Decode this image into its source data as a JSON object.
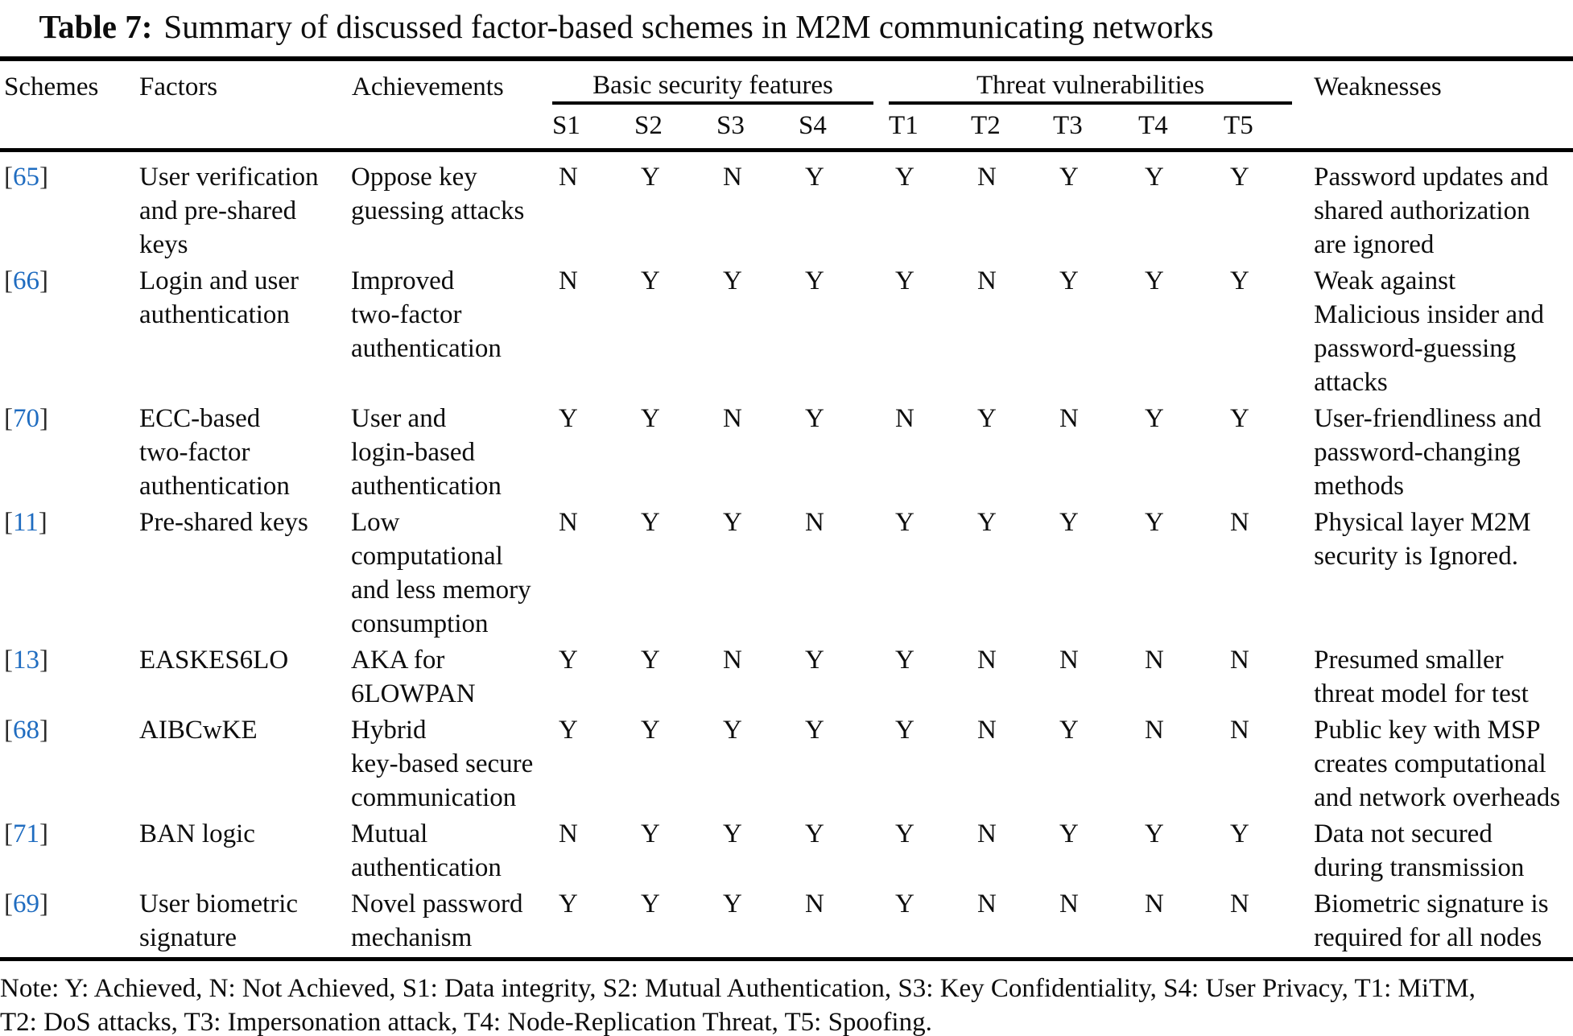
{
  "title": {
    "label": "Table 7:",
    "text": "Summary of discussed factor-based schemes in M2M communicating networks"
  },
  "table": {
    "columns": {
      "schemes": "Schemes",
      "factors": "Factors",
      "achievements": "Achievements",
      "basic_security_group": "Basic security features",
      "threat_group": "Threat vulnerabilities",
      "security_cols": [
        "S1",
        "S2",
        "S3",
        "S4"
      ],
      "threat_cols": [
        "T1",
        "T2",
        "T3",
        "T4",
        "T5"
      ],
      "weaknesses": "Weaknesses"
    },
    "ref_brackets": {
      "open": "[",
      "close": "]"
    },
    "rows": [
      {
        "ref": "65",
        "factors": "User verification\nand pre-shared\nkeys",
        "achievements": "Oppose key\nguessing attacks",
        "security": [
          "N",
          "Y",
          "N",
          "Y"
        ],
        "threats": [
          "Y",
          "N",
          "Y",
          "Y",
          "Y"
        ],
        "weakness": "Password updates and\nshared authorization\nare ignored"
      },
      {
        "ref": "66",
        "factors": "Login and user\nauthentication",
        "achievements": "Improved\ntwo-factor\nauthentication",
        "security": [
          "N",
          "Y",
          "Y",
          "Y"
        ],
        "threats": [
          "Y",
          "N",
          "Y",
          "Y",
          "Y"
        ],
        "weakness": "Weak against\nMalicious insider and\npassword-guessing\nattacks"
      },
      {
        "ref": "70",
        "factors": "ECC-based\ntwo-factor\nauthentication",
        "achievements": "User and\nlogin-based\nauthentication",
        "security": [
          "Y",
          "Y",
          "N",
          "Y"
        ],
        "threats": [
          "N",
          "Y",
          "N",
          "Y",
          "Y"
        ],
        "weakness": "User-friendliness and\npassword-changing\nmethods"
      },
      {
        "ref": "11",
        "factors": "Pre-shared keys",
        "achievements": "Low\ncomputational\nand less memory\nconsumption",
        "security": [
          "N",
          "Y",
          "Y",
          "N"
        ],
        "threats": [
          "Y",
          "Y",
          "Y",
          "Y",
          "N"
        ],
        "weakness": "Physical layer M2M\nsecurity is Ignored."
      },
      {
        "ref": "13",
        "factors": "EASKES6LO",
        "achievements": "AKA for\n6LOWPAN",
        "security": [
          "Y",
          "Y",
          "N",
          "Y"
        ],
        "threats": [
          "Y",
          "N",
          "N",
          "N",
          "N"
        ],
        "weakness": "Presumed smaller\nthreat model for test"
      },
      {
        "ref": "68",
        "factors": "AIBCwKE",
        "achievements": "Hybrid\nkey-based secure\ncommunication",
        "security": [
          "Y",
          "Y",
          "Y",
          "Y"
        ],
        "threats": [
          "Y",
          "N",
          "Y",
          "N",
          "N"
        ],
        "weakness": "Public key with MSP\ncreates computational\nand network overheads"
      },
      {
        "ref": "71",
        "factors": "BAN logic",
        "achievements": "Mutual\nauthentication",
        "security": [
          "N",
          "Y",
          "Y",
          "Y"
        ],
        "threats": [
          "Y",
          "N",
          "Y",
          "Y",
          "Y"
        ],
        "weakness": "Data not secured\nduring transmission"
      },
      {
        "ref": "69",
        "factors": "User biometric\nsignature",
        "achievements": "Novel password\nmechanism",
        "security": [
          "Y",
          "Y",
          "Y",
          "N"
        ],
        "threats": [
          "Y",
          "N",
          "N",
          "N",
          "N"
        ],
        "weakness": "Biometric signature is\nrequired for all nodes"
      }
    ],
    "note": "Note: Y: Achieved, N: Not Achieved, S1: Data integrity, S2: Mutual Authentication, S3: Key Confidentiality, S4: User Privacy, T1: MiTM,\nT2: DoS attacks, T3: Impersonation attack, T4: Node-Replication Threat, T5: Spoofing."
  },
  "colors": {
    "background": "#ffffff",
    "text": "#0d0d0d",
    "rule": "#000000",
    "ref_number": "#1f6cc0",
    "ref_bracket": "#2b2b2b"
  }
}
